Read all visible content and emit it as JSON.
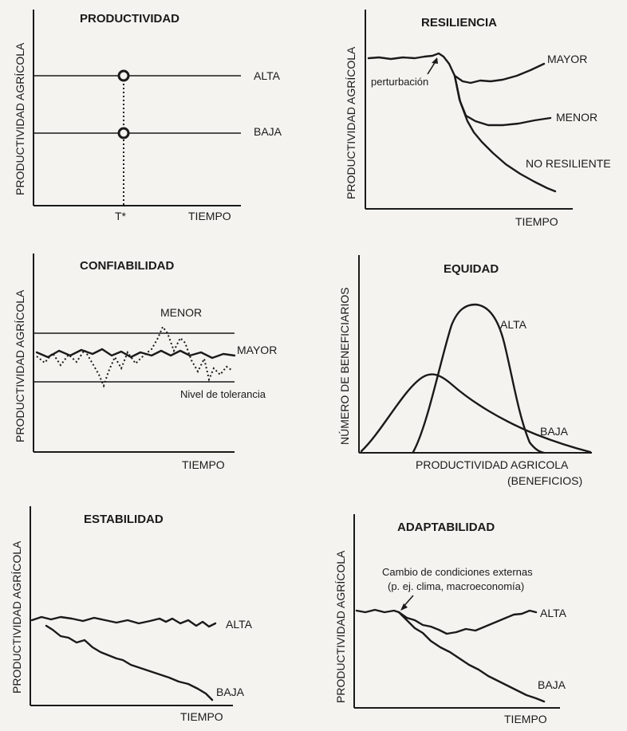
{
  "panels": {
    "productividad": {
      "title": "PRODUCTIVIDAD",
      "ylabel": "PRODUCTIVIDAD AGRÍCOLA",
      "xlabel": "TIEMPO",
      "tick": "T*",
      "high": "ALTA",
      "low": "BAJA"
    },
    "resiliencia": {
      "title": "RESILIENCIA",
      "ylabel": "PRODUCTIVIDAD AGRÍCOLA",
      "xlabel": "TIEMPO",
      "disturbance": "perturbación",
      "major": "MAYOR",
      "minor": "MENOR",
      "not_resilient": "NO RESILIENTE"
    },
    "confiabilidad": {
      "title": "CONFIABILIDAD",
      "ylabel": "PRODUCTIVIDAD AGRÍCOLA",
      "xlabel": "TIEMPO",
      "minor": "MENOR",
      "major": "MAYOR",
      "tolerance": "Nivel de tolerancia"
    },
    "equidad": {
      "title": "EQUIDAD",
      "ylabel": "NÚMERO DE BENEFICIARIOS",
      "xlabel": "PRODUCTIVIDAD AGRICOLA",
      "xlabel2": "(BENEFICIOS)",
      "high": "ALTA",
      "low": "BAJA"
    },
    "estabilidad": {
      "title": "ESTABILIDAD",
      "ylabel": "PRODUCTIVIDAD AGRÍCOLA",
      "xlabel": "TIEMPO",
      "high": "ALTA",
      "low": "BAJA"
    },
    "adaptabilidad": {
      "title": "ADAPTABILIDAD",
      "ylabel": "PRODUCTIVIDAD AGRÍCOLA",
      "xlabel": "TIEMPO",
      "change_line1": "Cambio de condiciones externas",
      "change_line2": "(p. ej. clima, macroeconomía)",
      "high": "ALTA",
      "low": "BAJA"
    }
  }
}
